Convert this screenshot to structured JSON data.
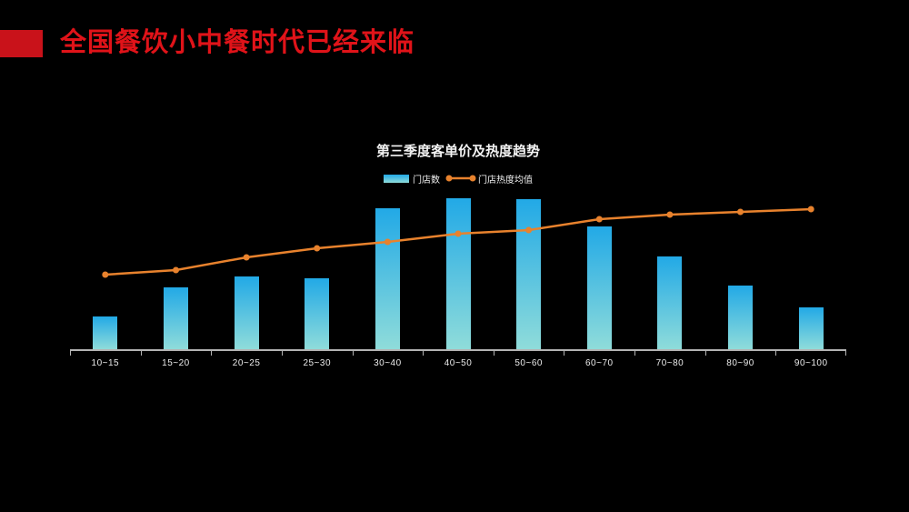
{
  "slide": {
    "title": "全国餐饮小中餐时代已经来临",
    "title_color": "#e01319",
    "accent_block_color": "#c9121a",
    "background": "#000000"
  },
  "chart": {
    "title": "第三季度客单价及热度趋势",
    "legend": {
      "bar_label": "门店数",
      "line_label": "门店热度均值"
    }
  },
  "chart_data": {
    "type": "bar",
    "combo": "bar+line",
    "title": "第三季度客单价及热度趋势",
    "categories": [
      "10~15",
      "15~20",
      "20~25",
      "25~30",
      "30~40",
      "40~50",
      "50~60",
      "60~70",
      "70~80",
      "80~90",
      "90~100"
    ],
    "series": [
      {
        "name": "门店数",
        "type": "bar",
        "values": [
          36,
          68,
          80,
          78,
          155,
          166,
          165,
          135,
          102,
          70,
          46
        ]
      },
      {
        "name": "门店热度均值",
        "type": "line",
        "values": [
          82,
          87,
          101,
          111,
          118,
          127,
          131,
          143,
          148,
          151,
          154
        ]
      }
    ],
    "value_note": "no numeric y-axis shown in source; values estimated in plot pixels above baseline",
    "xlabel": "",
    "ylabel": "",
    "ylim": [
      0,
      177
    ],
    "grid": false,
    "legend_position": "top-center",
    "colors": {
      "bar_top": "#22a9e6",
      "bar_bottom": "#8fdcda",
      "line": "#e8822d",
      "axis": "#b3b3b3"
    }
  }
}
